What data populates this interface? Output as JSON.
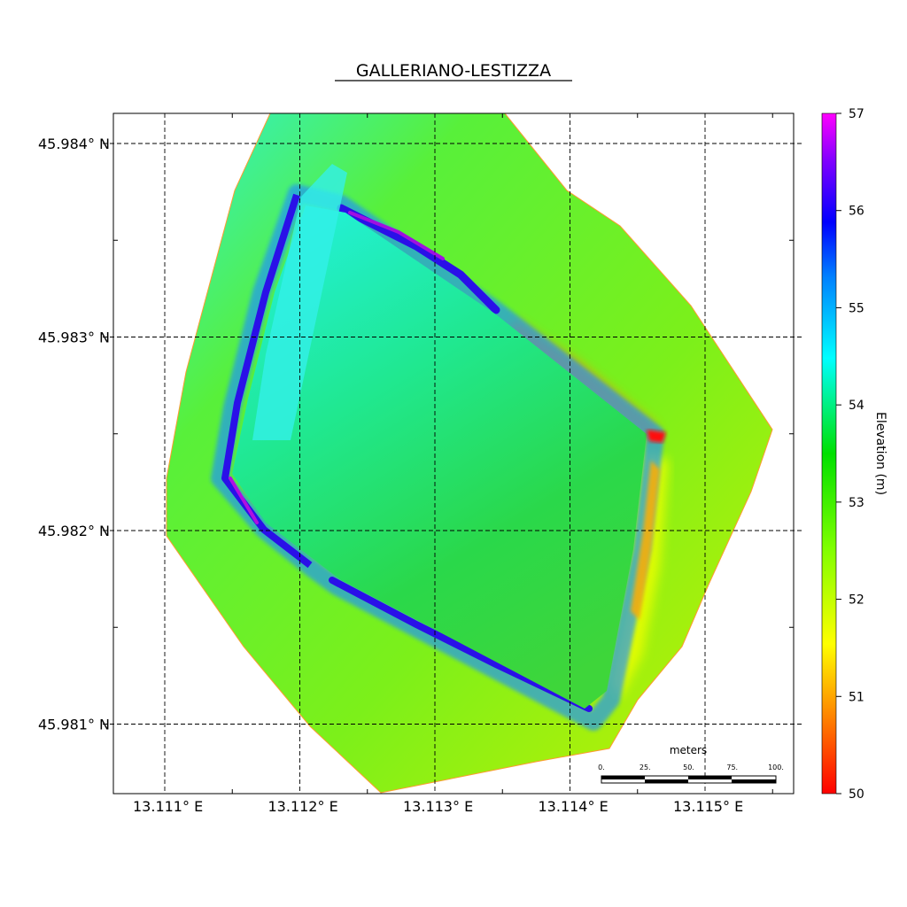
{
  "title": "GALLERIANO-LESTIZZA",
  "map": {
    "lon_ticks": [
      {
        "value": 13.111,
        "label": "13.111° E"
      },
      {
        "value": 13.112,
        "label": "13.112° E"
      },
      {
        "value": 13.113,
        "label": "13.113° E"
      },
      {
        "value": 13.114,
        "label": "13.114° E"
      },
      {
        "value": 13.115,
        "label": "13.115° E"
      }
    ],
    "lat_ticks": [
      {
        "value": 45.984,
        "label": "45.984° N"
      },
      {
        "value": 45.983,
        "label": "45.983° N"
      },
      {
        "value": 45.982,
        "label": "45.982° N"
      },
      {
        "value": 45.981,
        "label": "45.981° N"
      }
    ],
    "grid": true,
    "colors": {
      "background_terrain": "#73f01a",
      "interior_terrain": "#2fd86a",
      "embankment_high": "#2416e0",
      "embankment_peak": "#c011e0",
      "embankment_low": "#ff6a00"
    }
  },
  "colorbar": {
    "label": "Elevation (m)",
    "ticks": [
      "57",
      "56",
      "55",
      "54",
      "53",
      "52",
      "51",
      "50"
    ],
    "range": [
      50,
      57
    ],
    "stops": [
      "#ff0000",
      "#ff8000",
      "#ffff00",
      "#80ff00",
      "#00e000",
      "#00ffff",
      "#0080ff",
      "#0000ff",
      "#8000ff",
      "#ff00ff"
    ]
  },
  "scalebar": {
    "title": "meters",
    "labels": [
      "0.",
      "25.",
      "50.",
      "75.",
      "100."
    ]
  }
}
